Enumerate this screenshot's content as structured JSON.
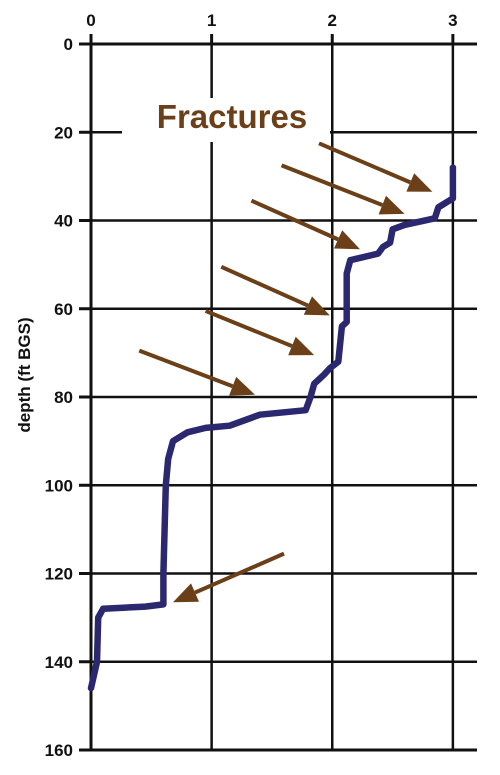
{
  "chart_data": {
    "type": "line",
    "title": "",
    "xlabel": "",
    "ylabel": "depth (ft BGS)",
    "xlim": [
      0,
      3.2
    ],
    "ylim": [
      0,
      160
    ],
    "y_inverted": true,
    "x_ticks": [
      "0",
      "1",
      "2",
      "3"
    ],
    "y_ticks": [
      "0",
      "20",
      "40",
      "60",
      "80",
      "100",
      "120",
      "140",
      "160"
    ],
    "x_axis_position": "top",
    "grid": true,
    "series": [
      {
        "color": "#2b2870",
        "points": [
          [
            3.0,
            28
          ],
          [
            3.0,
            35
          ],
          [
            2.88,
            37
          ],
          [
            2.85,
            39.5
          ],
          [
            2.6,
            41
          ],
          [
            2.5,
            42
          ],
          [
            2.48,
            45
          ],
          [
            2.42,
            46
          ],
          [
            2.38,
            47.5
          ],
          [
            2.15,
            49
          ],
          [
            2.12,
            52
          ],
          [
            2.12,
            63
          ],
          [
            2.08,
            64
          ],
          [
            2.05,
            72
          ],
          [
            1.98,
            73.5
          ],
          [
            1.93,
            75
          ],
          [
            1.85,
            77
          ],
          [
            1.82,
            80
          ],
          [
            1.78,
            83
          ],
          [
            1.4,
            84
          ],
          [
            1.15,
            86.5
          ],
          [
            0.95,
            87
          ],
          [
            0.8,
            88
          ],
          [
            0.68,
            90
          ],
          [
            0.64,
            94
          ],
          [
            0.62,
            100
          ],
          [
            0.61,
            110
          ],
          [
            0.6,
            120
          ],
          [
            0.6,
            127
          ],
          [
            0.45,
            127.5
          ],
          [
            0.1,
            128
          ],
          [
            0.06,
            130
          ],
          [
            0.05,
            140
          ],
          [
            0.0,
            146
          ]
        ]
      }
    ],
    "annotations": {
      "text": "Fractures",
      "color": "#6b3f17",
      "arrows": [
        {
          "from": [
            1.89,
            22.5
          ],
          "to": [
            2.83,
            33.5
          ]
        },
        {
          "from": [
            1.58,
            27.5
          ],
          "to": [
            2.6,
            38.5
          ]
        },
        {
          "from": [
            1.33,
            35.5
          ],
          "to": [
            2.23,
            46.5
          ]
        },
        {
          "from": [
            1.08,
            50.5
          ],
          "to": [
            1.98,
            61.5
          ]
        },
        {
          "from": [
            0.95,
            60.5
          ],
          "to": [
            1.85,
            70.5
          ]
        },
        {
          "from": [
            0.4,
            69.5
          ],
          "to": [
            1.36,
            79.5
          ]
        },
        {
          "from": [
            1.6,
            115.5
          ],
          "to": [
            0.68,
            126.5
          ]
        }
      ]
    }
  }
}
